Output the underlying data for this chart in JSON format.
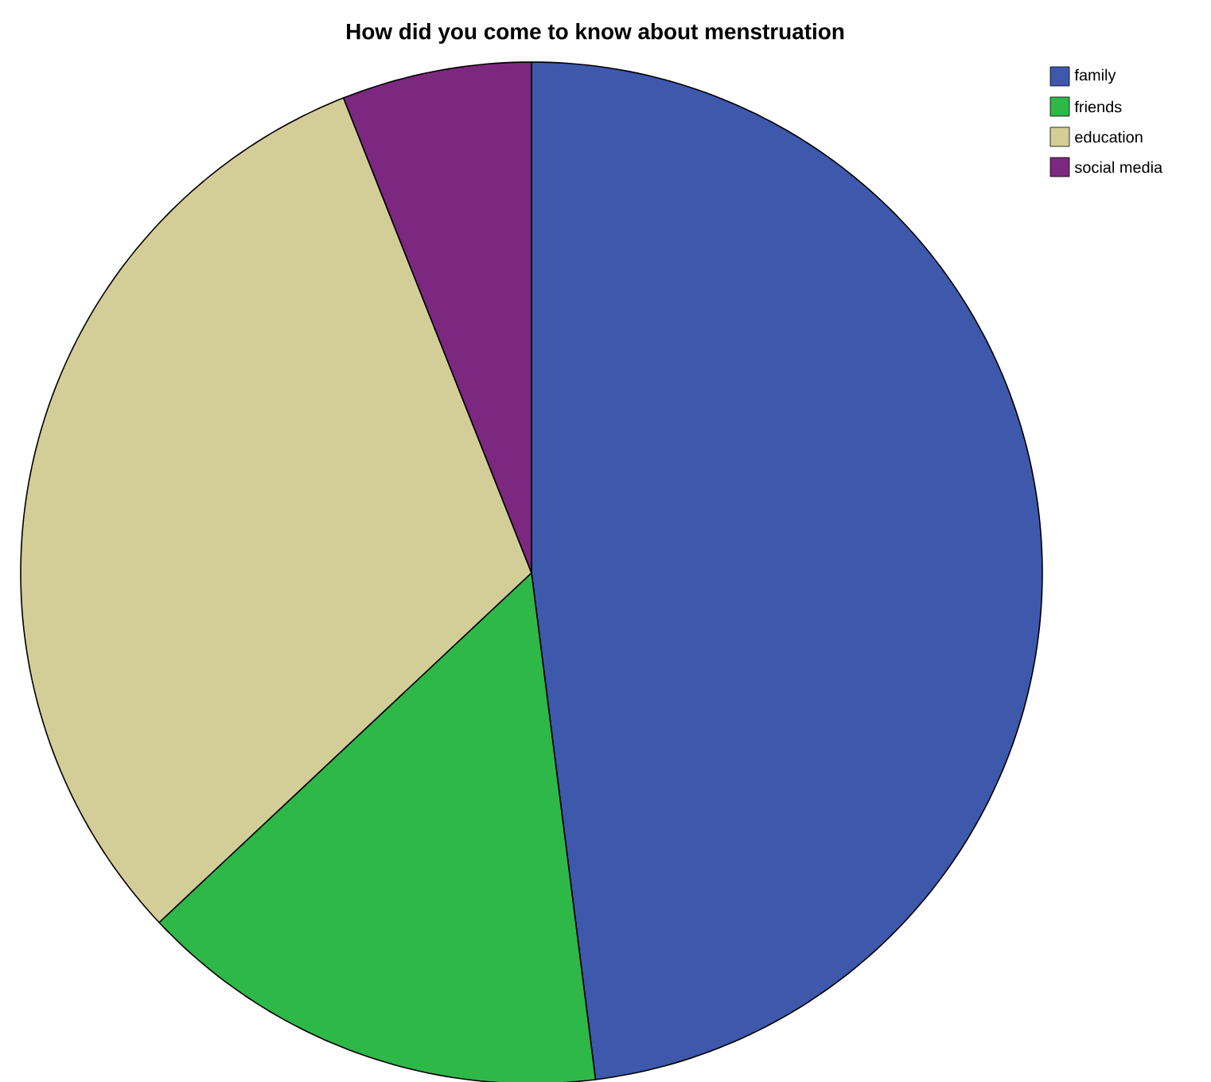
{
  "chart_data": {
    "type": "pie",
    "title": "How did you come to know about menstruation",
    "categories": [
      "family",
      "friends",
      "education",
      "social media"
    ],
    "values": [
      48,
      15,
      31,
      6
    ],
    "colors": [
      "#3e58ac",
      "#2eb848",
      "#d3ce97",
      "#7c2880"
    ],
    "legend": "top right"
  }
}
